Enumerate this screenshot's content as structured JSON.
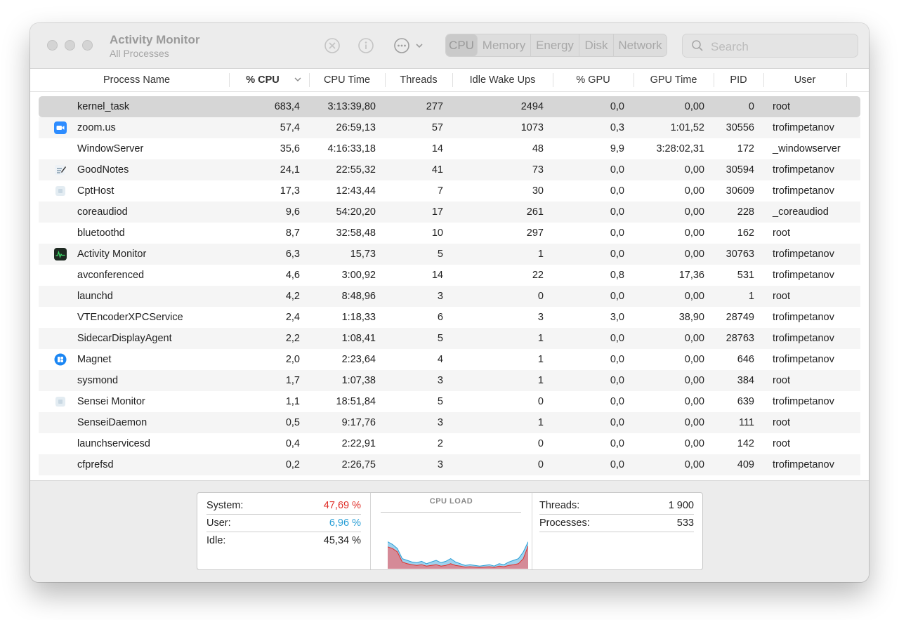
{
  "window": {
    "title": "Activity Monitor",
    "subtitle": "All Processes"
  },
  "toolbar": {
    "stop_icon": "x-circle-icon",
    "info_icon": "info-circle-icon",
    "more_icon": "ellipsis-circle-icon",
    "tabs": [
      "CPU",
      "Memory",
      "Energy",
      "Disk",
      "Network"
    ],
    "active_tab": "CPU",
    "search_placeholder": "Search"
  },
  "columns": [
    "Process Name",
    "% CPU",
    "CPU Time",
    "Threads",
    "Idle Wake Ups",
    "% GPU",
    "GPU Time",
    "PID",
    "User"
  ],
  "sort_column": "% CPU",
  "processes": [
    {
      "name": "kernel_task",
      "cpu": "683,4",
      "cpu_time": "3:13:39,80",
      "threads": "277",
      "idle": "2494",
      "gpu": "0,0",
      "gpu_time": "0,00",
      "pid": "0",
      "user": "root",
      "icon": "",
      "selected": true
    },
    {
      "name": "zoom.us",
      "cpu": "57,4",
      "cpu_time": "26:59,13",
      "threads": "57",
      "idle": "1073",
      "gpu": "0,3",
      "gpu_time": "1:01,52",
      "pid": "30556",
      "user": "trofimpetanov",
      "icon": "zoom-app-icon"
    },
    {
      "name": "WindowServer",
      "cpu": "35,6",
      "cpu_time": "4:16:33,18",
      "threads": "14",
      "idle": "48",
      "gpu": "9,9",
      "gpu_time": "3:28:02,31",
      "pid": "172",
      "user": "_windowserver",
      "icon": ""
    },
    {
      "name": "GoodNotes",
      "cpu": "24,1",
      "cpu_time": "22:55,32",
      "threads": "41",
      "idle": "73",
      "gpu": "0,0",
      "gpu_time": "0,00",
      "pid": "30594",
      "user": "trofimpetanov",
      "icon": "goodnotes-app-icon"
    },
    {
      "name": "CptHost",
      "cpu": "17,3",
      "cpu_time": "12:43,44",
      "threads": "7",
      "idle": "30",
      "gpu": "0,0",
      "gpu_time": "0,00",
      "pid": "30609",
      "user": "trofimpetanov",
      "icon": "generic-app-icon"
    },
    {
      "name": "coreaudiod",
      "cpu": "9,6",
      "cpu_time": "54:20,20",
      "threads": "17",
      "idle": "261",
      "gpu": "0,0",
      "gpu_time": "0,00",
      "pid": "228",
      "user": "_coreaudiod",
      "icon": ""
    },
    {
      "name": "bluetoothd",
      "cpu": "8,7",
      "cpu_time": "32:58,48",
      "threads": "10",
      "idle": "297",
      "gpu": "0,0",
      "gpu_time": "0,00",
      "pid": "162",
      "user": "root",
      "icon": ""
    },
    {
      "name": "Activity Monitor",
      "cpu": "6,3",
      "cpu_time": "15,73",
      "threads": "5",
      "idle": "1",
      "gpu": "0,0",
      "gpu_time": "0,00",
      "pid": "30763",
      "user": "trofimpetanov",
      "icon": "activity-monitor-app-icon"
    },
    {
      "name": "avconferenced",
      "cpu": "4,6",
      "cpu_time": "3:00,92",
      "threads": "14",
      "idle": "22",
      "gpu": "0,8",
      "gpu_time": "17,36",
      "pid": "531",
      "user": "trofimpetanov",
      "icon": ""
    },
    {
      "name": "launchd",
      "cpu": "4,2",
      "cpu_time": "8:48,96",
      "threads": "3",
      "idle": "0",
      "gpu": "0,0",
      "gpu_time": "0,00",
      "pid": "1",
      "user": "root",
      "icon": ""
    },
    {
      "name": "VTEncoderXPCService",
      "cpu": "2,4",
      "cpu_time": "1:18,33",
      "threads": "6",
      "idle": "3",
      "gpu": "3,0",
      "gpu_time": "38,90",
      "pid": "28749",
      "user": "trofimpetanov",
      "icon": ""
    },
    {
      "name": "SidecarDisplayAgent",
      "cpu": "2,2",
      "cpu_time": "1:08,41",
      "threads": "5",
      "idle": "1",
      "gpu": "0,0",
      "gpu_time": "0,00",
      "pid": "28763",
      "user": "trofimpetanov",
      "icon": ""
    },
    {
      "name": "Magnet",
      "cpu": "2,0",
      "cpu_time": "2:23,64",
      "threads": "4",
      "idle": "1",
      "gpu": "0,0",
      "gpu_time": "0,00",
      "pid": "646",
      "user": "trofimpetanov",
      "icon": "magnet-app-icon"
    },
    {
      "name": "sysmond",
      "cpu": "1,7",
      "cpu_time": "1:07,38",
      "threads": "3",
      "idle": "1",
      "gpu": "0,0",
      "gpu_time": "0,00",
      "pid": "384",
      "user": "root",
      "icon": ""
    },
    {
      "name": "Sensei Monitor",
      "cpu": "1,1",
      "cpu_time": "18:51,84",
      "threads": "5",
      "idle": "0",
      "gpu": "0,0",
      "gpu_time": "0,00",
      "pid": "639",
      "user": "trofimpetanov",
      "icon": "generic-app-icon"
    },
    {
      "name": "SenseiDaemon",
      "cpu": "0,5",
      "cpu_time": "9:17,76",
      "threads": "3",
      "idle": "1",
      "gpu": "0,0",
      "gpu_time": "0,00",
      "pid": "111",
      "user": "root",
      "icon": ""
    },
    {
      "name": "launchservicesd",
      "cpu": "0,4",
      "cpu_time": "2:22,91",
      "threads": "2",
      "idle": "0",
      "gpu": "0,0",
      "gpu_time": "0,00",
      "pid": "142",
      "user": "root",
      "icon": ""
    },
    {
      "name": "cfprefsd",
      "cpu": "0,2",
      "cpu_time": "2:26,75",
      "threads": "3",
      "idle": "0",
      "gpu": "0,0",
      "gpu_time": "0,00",
      "pid": "409",
      "user": "trofimpetanov",
      "icon": ""
    }
  ],
  "summary": {
    "system_label": "System:",
    "system_value": "47,69 %",
    "user_label": "User:",
    "user_value": "6,96 %",
    "idle_label": "Idle:",
    "idle_value": "45,34 %",
    "cpu_load_title": "CPU LOAD",
    "threads_label": "Threads:",
    "threads_value": "1 900",
    "processes_label": "Processes:",
    "processes_value": "533"
  },
  "colors": {
    "system": "#e0302a",
    "user": "#2a9fd6",
    "system_fill": "#d58a97",
    "user_fill": "#9fd2ee"
  },
  "cpu_load": {
    "user_series": [
      0.8,
      0.72,
      0.6,
      0.3,
      0.25,
      0.2,
      0.18,
      0.22,
      0.15,
      0.2,
      0.25,
      0.18,
      0.22,
      0.3,
      0.2,
      0.15,
      0.1,
      0.12,
      0.1,
      0.08,
      0.1,
      0.12,
      0.08,
      0.15,
      0.12,
      0.2,
      0.25,
      0.3,
      0.5,
      0.8
    ],
    "system_series": [
      0.65,
      0.6,
      0.5,
      0.2,
      0.15,
      0.12,
      0.1,
      0.12,
      0.08,
      0.1,
      0.12,
      0.08,
      0.1,
      0.15,
      0.1,
      0.08,
      0.05,
      0.06,
      0.05,
      0.04,
      0.05,
      0.06,
      0.04,
      0.08,
      0.06,
      0.1,
      0.12,
      0.15,
      0.3,
      0.68
    ]
  }
}
